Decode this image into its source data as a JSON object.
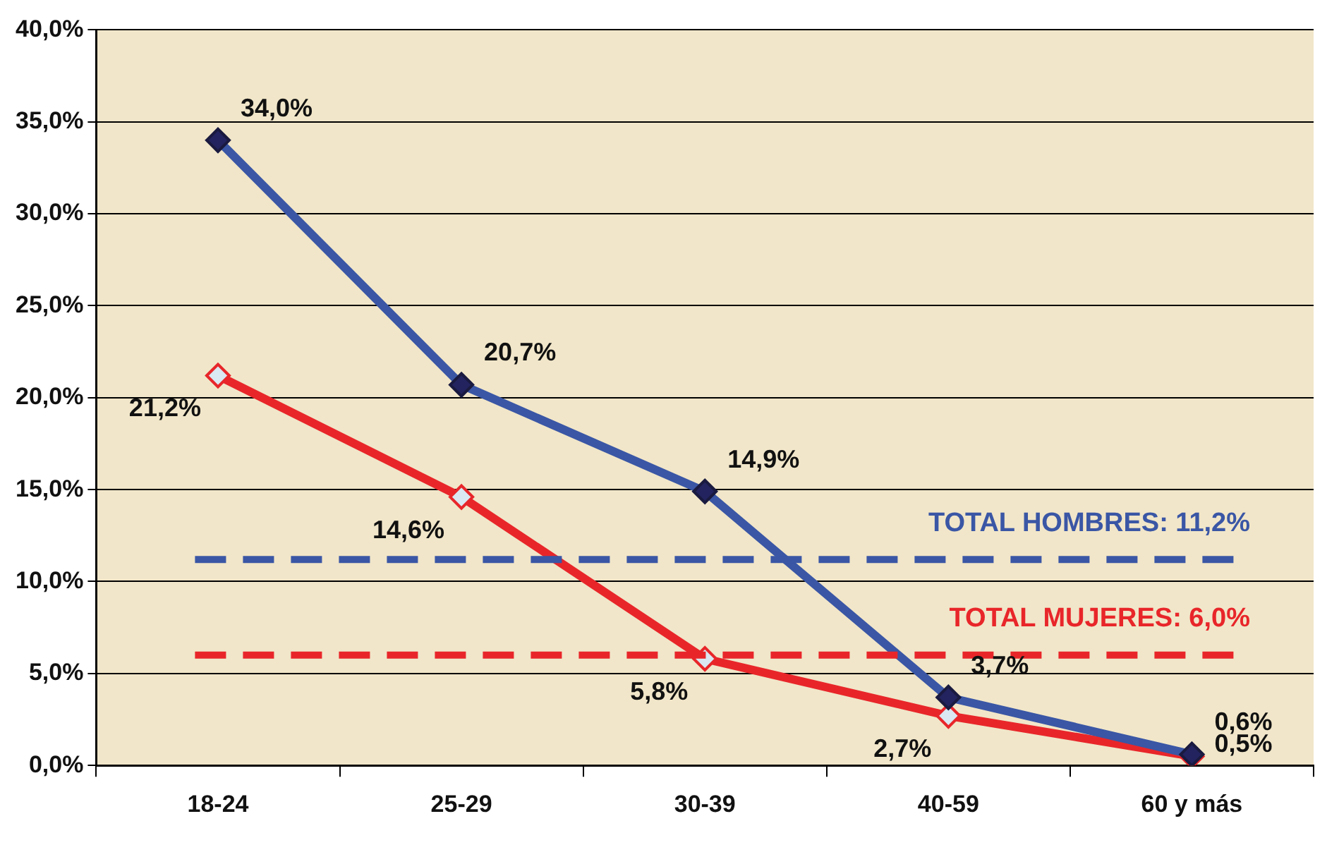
{
  "chart_data": {
    "type": "line",
    "categories": [
      "18-24",
      "25-29",
      "30-39",
      "40-59",
      "60 y más"
    ],
    "series": [
      {
        "color": "#3a56a5",
        "values": [
          34.0,
          20.7,
          14.9,
          3.7,
          0.6
        ],
        "value_labels": [
          "34,0%",
          "20,7%",
          "14,9%",
          "3,7%",
          "0,6%"
        ]
      },
      {
        "color": "#e8262a",
        "values": [
          21.2,
          14.6,
          5.8,
          2.7,
          0.5
        ],
        "value_labels": [
          "21,2%",
          "14,6%",
          "5,8%",
          "2,7%",
          "0,5%"
        ]
      }
    ],
    "ylim": [
      0,
      40
    ],
    "yticks": [
      {
        "value": 0,
        "label": "0,0%"
      },
      {
        "value": 5,
        "label": "5,0%"
      },
      {
        "value": 10,
        "label": "10,0%"
      },
      {
        "value": 15,
        "label": "15,0%"
      },
      {
        "value": 20,
        "label": "20,0%"
      },
      {
        "value": 25,
        "label": "25,0%"
      },
      {
        "value": 30,
        "label": "30,0%"
      },
      {
        "value": 35,
        "label": "35,0%"
      },
      {
        "value": 40,
        "label": "40,0%"
      }
    ],
    "ref_lines": [
      {
        "axis": "y",
        "value": 11.2,
        "label": "TOTAL HOMBRES: 11,2%",
        "color": "#3a56a5",
        "line_style": "dashed"
      },
      {
        "axis": "y",
        "value": 6.0,
        "label": "TOTAL MUJERES: 6,0%",
        "color": "#e8262a",
        "line_style": "dashed"
      }
    ],
    "grid": "y",
    "legend": false,
    "marker": "diamond",
    "line_style": "solid"
  }
}
